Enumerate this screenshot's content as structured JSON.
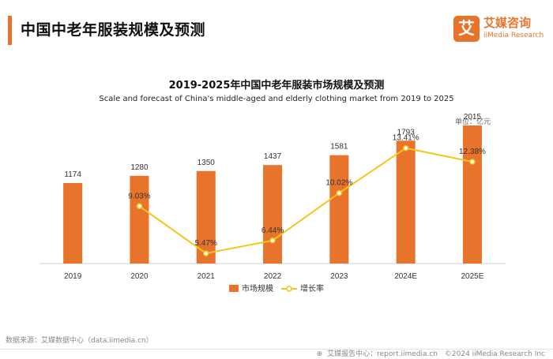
{
  "header": {
    "title": "中国中老年服装规模及预测"
  },
  "logo": {
    "mark": "艾",
    "name_cn": "艾媒咨询",
    "name_en": "iiMedia Research"
  },
  "chart_data": {
    "type": "bar",
    "title": "2019-2025年中国中老年服装市场规模及预测",
    "subtitle": "Scale and forecast of China's middle-aged and elderly clothing market from 2019 to 2025",
    "unit": "单位：亿元",
    "categories": [
      "2019",
      "2020",
      "2021",
      "2022",
      "2023",
      "2024E",
      "2025E"
    ],
    "series": [
      {
        "name": "市场规模",
        "type": "bar",
        "values": [
          1174,
          1280,
          1350,
          1437,
          1581,
          1793,
          2015
        ],
        "labels": [
          "1174",
          "1280",
          "1350",
          "1437",
          "1581",
          "1793",
          "2015"
        ]
      },
      {
        "name": "增长率",
        "type": "line",
        "values": [
          null,
          9.03,
          5.47,
          6.44,
          10.02,
          13.41,
          12.38
        ],
        "labels": [
          "",
          "9.03%",
          "5.47%",
          "6.44%",
          "10.02%",
          "13.41%",
          "12.38%"
        ]
      }
    ],
    "colors": {
      "bar": "#e8742c",
      "line": "#f5c518"
    },
    "legend_position": "bottom-center",
    "grid": false
  },
  "footer": {
    "source": "数据来源：艾媒数据中心（data.iimedia.cn）",
    "report_center": "艾媒报告中心：report.iimedia.cn",
    "copyright": "©2024  iiMedia Research Inc"
  }
}
